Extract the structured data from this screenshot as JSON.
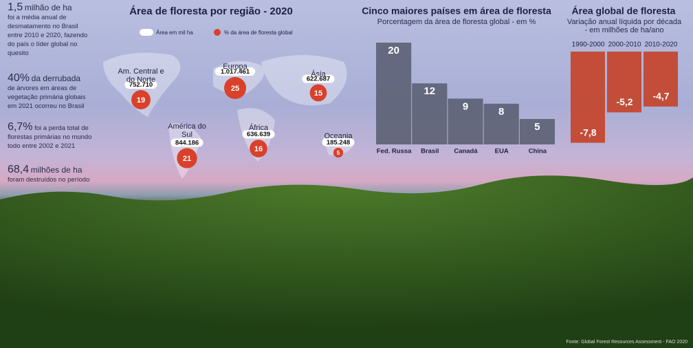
{
  "chart_data": [
    {
      "type": "bubble-map",
      "title": "Área de floresta por região - 2020",
      "categories": [
        "Am. Central e do Norte",
        "Europa",
        "Ásia",
        "América do Sul",
        "África",
        "Oceania"
      ],
      "series": [
        {
          "name": "Área em mil ha",
          "color": "#ffffff",
          "values": [
            752710,
            1017461,
            622687,
            844186,
            636639,
            185248
          ],
          "value_labels": [
            "752.710",
            "1.017.461",
            "622.687",
            "844.186",
            "636.639",
            "185.248"
          ]
        },
        {
          "name": "% da área de floresta global",
          "color": "#d9412a",
          "values": [
            19,
            25,
            15,
            21,
            16,
            5
          ]
        }
      ]
    },
    {
      "type": "bar",
      "title": "Cinco maiores países em área de floresta",
      "subtitle": "Porcentagem da área de floresta global - em %",
      "categories": [
        "Fed. Russa",
        "Brasil",
        "Canadá",
        "EUA",
        "China"
      ],
      "values": [
        20,
        12,
        9,
        8,
        5
      ],
      "color": "#5a5f72"
    },
    {
      "type": "hanging-bar",
      "title": "Área global de floresta",
      "subtitle": "Variação anual líquida por década - em milhões de ha/ano",
      "categories": [
        "1990-2000",
        "2000-2010",
        "2010-2020"
      ],
      "values": [
        -7.8,
        -5.2,
        -4.7
      ],
      "value_labels": [
        "-7,8",
        "-5,2",
        "-4,7"
      ],
      "color": "#c4442a"
    }
  ],
  "notes": [
    {
      "figure": "1,5",
      "lead": "milhão de ha",
      "body": "foi a média anual de desmatamento no Brasil entre 2010 e 2020, fazendo do país o líder global no quesito"
    },
    {
      "figure": "40%",
      "lead": "da derrubada",
      "body": "de árvores em áreas de vegetação primária globais em 2021 ocorreu no Brasil"
    },
    {
      "figure": "6,7%",
      "body": "foi a perda total de florestas primárias no mundo todo entre 2002 e 2021"
    },
    {
      "figure": "68,4",
      "lead": "milhões de ha",
      "body": "foram destruídos no período"
    }
  ],
  "source": "Fonte: Global Forest Resources Assessment - FAO 2020"
}
